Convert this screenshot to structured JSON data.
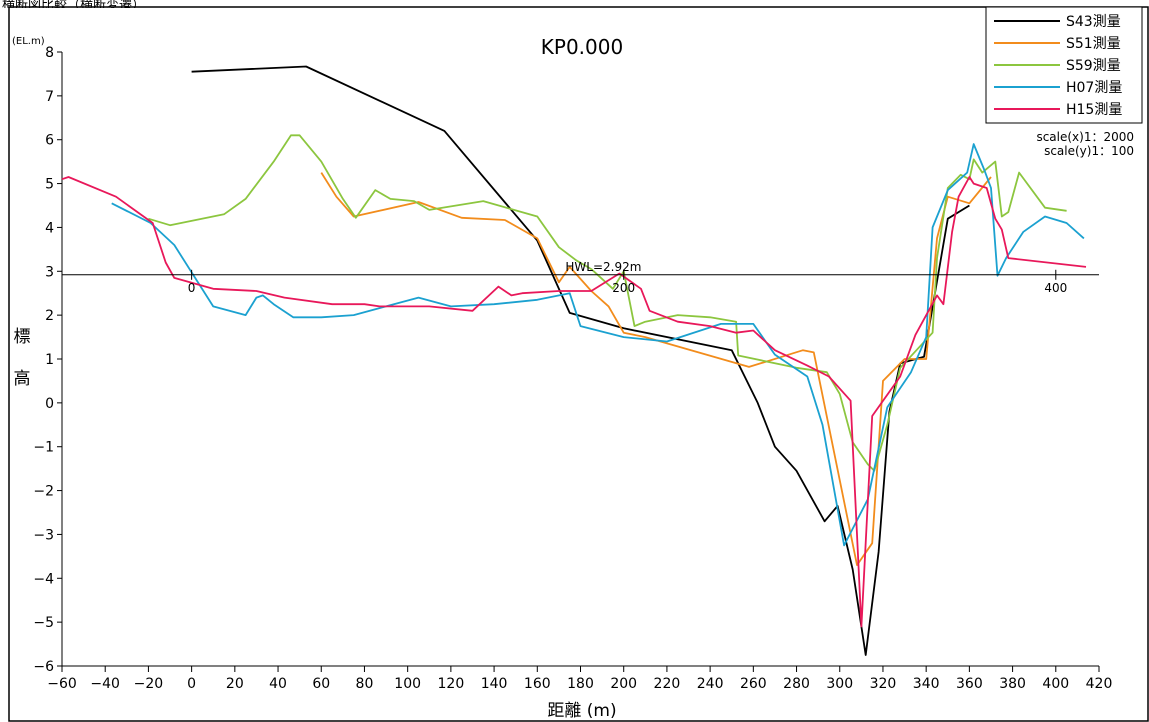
{
  "caption": "横断図比較（横断変遷）",
  "chart_data": {
    "type": "line",
    "title": "KP0.000",
    "xlabel": "距離 (m)",
    "ylabel": "標高",
    "y_unit": "(EL.m)",
    "xlim": [
      -60,
      420
    ],
    "ylim": [
      -6,
      8
    ],
    "x_ticks": [
      -60,
      -40,
      -20,
      0,
      20,
      40,
      60,
      80,
      100,
      120,
      140,
      160,
      180,
      200,
      220,
      240,
      260,
      280,
      300,
      320,
      340,
      360,
      380,
      400,
      420
    ],
    "y_ticks": [
      -6,
      -5,
      -4,
      -3,
      -2,
      -1,
      0,
      1,
      2,
      3,
      4,
      5,
      6,
      7,
      8
    ],
    "hwl": {
      "value": 2.92,
      "label": "HWL=2.92m"
    },
    "secondary_axis": {
      "y": 2.92,
      "ticks": [
        0,
        200,
        400
      ]
    },
    "scale_notes": [
      "scale(x)1：2000",
      "scale(y)1：100"
    ],
    "legend_position": "top-right",
    "series": [
      {
        "name": "S43測量",
        "color": "#000000",
        "x": [
          0,
          53,
          117,
          160,
          175,
          200,
          250,
          262,
          270,
          280,
          293,
          299,
          306,
          312,
          318,
          323,
          328,
          339,
          350,
          360
        ],
        "y": [
          7.55,
          7.67,
          6.2,
          3.7,
          2.05,
          1.7,
          1.2,
          0.0,
          -1.0,
          -1.55,
          -2.7,
          -2.35,
          -3.8,
          -5.75,
          -3.4,
          -0.2,
          0.9,
          1.05,
          4.2,
          4.5
        ]
      },
      {
        "name": "S51測量",
        "color": "#f28c1c",
        "x": [
          60,
          67,
          75,
          105,
          125,
          145,
          160,
          170,
          175,
          185,
          193,
          200,
          210,
          258,
          283,
          288,
          308,
          315,
          320,
          330,
          340,
          345,
          350,
          360,
          370
        ],
        "y": [
          5.25,
          4.7,
          4.25,
          4.58,
          4.22,
          4.17,
          3.75,
          2.75,
          3.1,
          2.55,
          2.2,
          1.6,
          1.5,
          0.82,
          1.2,
          1.15,
          -3.7,
          -3.2,
          0.5,
          1.0,
          1.0,
          3.75,
          4.7,
          4.55,
          5.15
        ]
      },
      {
        "name": "S59測量",
        "color": "#8cc63f",
        "x": [
          -20,
          -10,
          15,
          25,
          38,
          46,
          50,
          60,
          70,
          76,
          85,
          92,
          103,
          110,
          135,
          160,
          170,
          178,
          185,
          195,
          200,
          205,
          210,
          225,
          240,
          252,
          253,
          280,
          294,
          300,
          306,
          313,
          316,
          322,
          328,
          343,
          345,
          350,
          356,
          360,
          362,
          366,
          372,
          375,
          378,
          383,
          395,
          405
        ],
        "y": [
          4.2,
          4.05,
          4.3,
          4.65,
          5.5,
          6.1,
          6.1,
          5.5,
          4.65,
          4.22,
          4.85,
          4.65,
          4.6,
          4.4,
          4.6,
          4.25,
          3.55,
          3.25,
          3.05,
          2.6,
          3.0,
          1.75,
          1.85,
          2.0,
          1.95,
          1.85,
          1.08,
          0.8,
          0.7,
          0.2,
          -0.9,
          -1.4,
          -1.55,
          -0.5,
          0.8,
          1.6,
          3.3,
          4.9,
          5.2,
          5.1,
          5.55,
          5.25,
          5.5,
          4.25,
          4.35,
          5.25,
          4.45,
          4.38
        ]
      },
      {
        "name": "H07測量",
        "color": "#1ba1d0",
        "x": [
          -37,
          -19,
          -8,
          10,
          25,
          30,
          33,
          38,
          47,
          60,
          75,
          105,
          120,
          140,
          160,
          175,
          180,
          200,
          220,
          245,
          260,
          270,
          285,
          292,
          302,
          313,
          322,
          333,
          340,
          343,
          350,
          359,
          362,
          367,
          370,
          373,
          377,
          385,
          395,
          405,
          413
        ],
        "y": [
          4.55,
          4.1,
          3.6,
          2.2,
          2.0,
          2.4,
          2.45,
          2.25,
          1.95,
          1.95,
          2.0,
          2.4,
          2.2,
          2.25,
          2.35,
          2.5,
          1.75,
          1.5,
          1.4,
          1.8,
          1.8,
          1.1,
          0.6,
          -0.5,
          -3.25,
          -2.2,
          -0.1,
          0.7,
          1.5,
          4.0,
          4.85,
          5.25,
          5.9,
          5.3,
          4.9,
          2.9,
          3.3,
          3.9,
          4.25,
          4.1,
          3.75
        ]
      },
      {
        "name": "H15測量",
        "color": "#e8185a",
        "x": [
          -60,
          -57,
          -35,
          -18,
          -12,
          -8,
          10,
          30,
          43,
          65,
          80,
          87,
          110,
          130,
          142,
          148,
          153,
          170,
          185,
          198,
          208,
          212,
          225,
          240,
          252,
          260,
          270,
          285,
          295,
          305,
          310,
          315,
          328,
          335,
          345,
          348,
          352,
          355,
          360,
          362,
          368,
          372,
          375,
          378,
          414
        ],
        "y": [
          5.1,
          5.15,
          4.7,
          4.1,
          3.2,
          2.85,
          2.6,
          2.55,
          2.4,
          2.25,
          2.25,
          2.2,
          2.2,
          2.1,
          2.65,
          2.45,
          2.5,
          2.55,
          2.55,
          2.95,
          2.6,
          2.1,
          1.85,
          1.75,
          1.6,
          1.65,
          1.2,
          0.85,
          0.6,
          0.05,
          -5.1,
          -0.3,
          0.6,
          1.55,
          2.45,
          2.25,
          3.9,
          4.7,
          5.15,
          5.0,
          4.9,
          4.2,
          3.95,
          3.3,
          3.1
        ]
      }
    ]
  }
}
